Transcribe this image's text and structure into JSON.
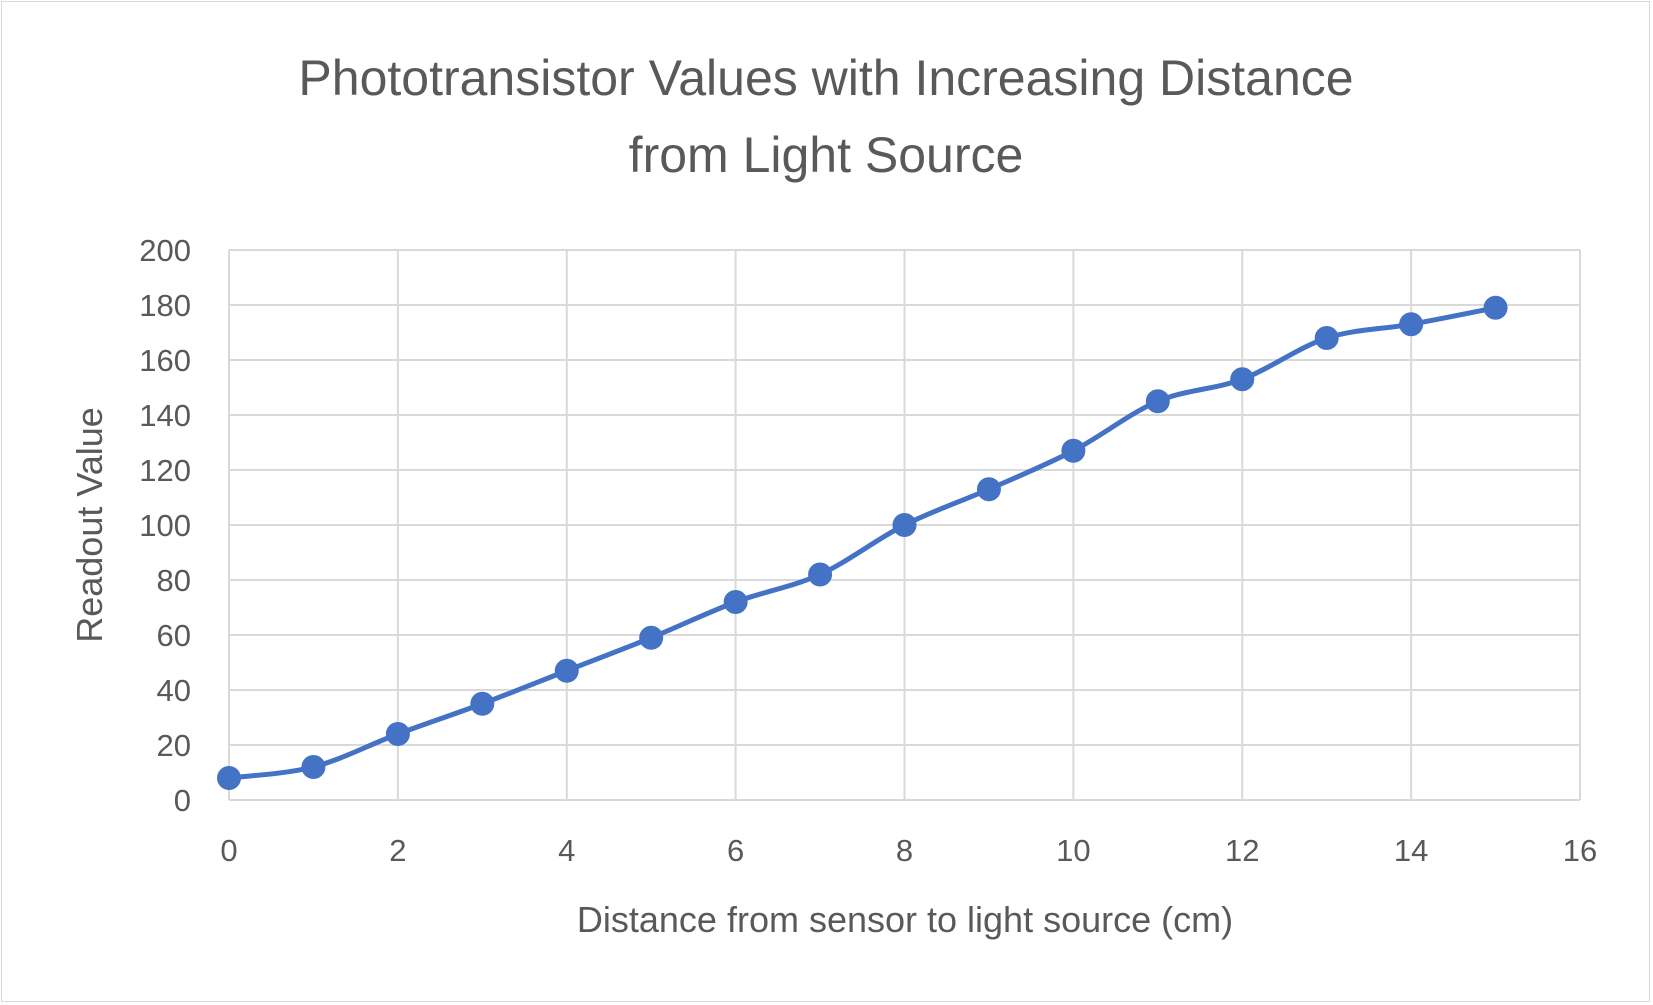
{
  "chart_data": {
    "type": "scatter",
    "title_lines": [
      "Phototransistor Values with Increasing Distance",
      "from Light Source"
    ],
    "xlabel": "Distance from sensor to light source (cm)",
    "ylabel": "Readout Value",
    "xlim": [
      0,
      16
    ],
    "ylim": [
      0,
      200
    ],
    "x_ticks": [
      0,
      2,
      4,
      6,
      8,
      10,
      12,
      14,
      16
    ],
    "y_ticks": [
      0,
      20,
      40,
      60,
      80,
      100,
      120,
      140,
      160,
      180,
      200
    ],
    "grid": true,
    "smooth_line": true,
    "series": [
      {
        "color": "#4472C4",
        "x": [
          0,
          1,
          2,
          3,
          4,
          5,
          6,
          7,
          8,
          9,
          10,
          11,
          12,
          13,
          14,
          15
        ],
        "y": [
          8,
          12,
          24,
          35,
          47,
          59,
          72,
          82,
          100,
          113,
          127,
          145,
          153,
          168,
          173,
          179
        ]
      }
    ]
  }
}
